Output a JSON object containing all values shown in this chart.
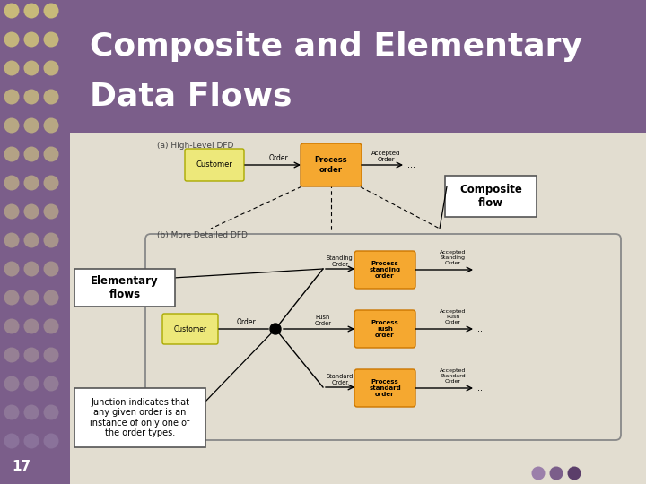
{
  "title_line1": "Composite and Elementary",
  "title_line2": "Data Flows",
  "title_bg_color": "#7B5E8A",
  "title_text_color": "#FFFFFF",
  "content_bg_color": "#E2DDD0",
  "slide_number": "17",
  "label_a": "(a) High-Level DFD",
  "label_b": "(b) More Detailed DFD",
  "customer_box_color": "#EDE87A",
  "process_box_color": "#F5A830",
  "composite_flow_label": "Composite\nflow",
  "elementary_flows_label": "Elementary\nflows",
  "junction_label": "Junction indicates that\nany given order is an\ninstance of only one of\nthe order types.",
  "left_bg_color": "#7B5E8A",
  "dot_colors": [
    "#C8BA7A",
    "#BEB080",
    "#A89C7A"
  ],
  "deco_circles": [
    "#9B7FAA",
    "#7B5E8A",
    "#5B3E6A"
  ]
}
